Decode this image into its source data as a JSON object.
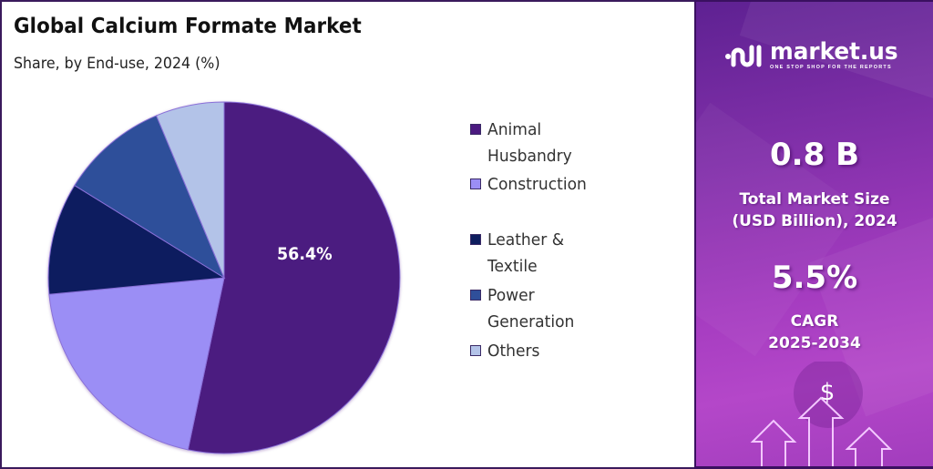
{
  "header": {
    "title": "Global Calcium Formate Market",
    "subtitle": "Share, by End-use, 2024 (%)"
  },
  "chart_data": {
    "type": "pie",
    "title": "Global Calcium Formate Market",
    "subtitle": "Share, by End-use, 2024 (%)",
    "categories": [
      "Animal Husbandry",
      "Construction",
      "Leather & Textile",
      "Power Generation",
      "Others"
    ],
    "values": [
      56.4,
      19.2,
      9.8,
      9.4,
      5.2
    ],
    "colors": [
      "#4b1a80",
      "#9b8ef5",
      "#0e1e5f",
      "#2f4f9a",
      "#b3c3e8"
    ],
    "data_labels": [
      {
        "category": "Animal Husbandry",
        "text": "56.4%"
      }
    ],
    "start_angle_deg": 0,
    "direction": "clockwise",
    "legend_position": "right"
  },
  "pie": {
    "center_label": "56.4%"
  },
  "legend": {
    "items": [
      {
        "label_line1": "Animal",
        "label_line2": "Husbandry",
        "color": "#4b1a80"
      },
      {
        "label_line1": "Construction",
        "label_line2": "",
        "color": "#9b8ef5"
      },
      {
        "label_line1": "Leather &",
        "label_line2": "Textile",
        "color": "#0e1e5f"
      },
      {
        "label_line1": "Power",
        "label_line2": "Generation",
        "color": "#2f4f9a"
      },
      {
        "label_line1": "Others",
        "label_line2": "",
        "color": "#b3c3e8"
      }
    ]
  },
  "brand": {
    "name": "market.us",
    "tagline": "ONE STOP SHOP FOR THE REPORTS"
  },
  "stats": {
    "market_size_value": "0.8 B",
    "market_size_label_line1": "Total Market Size",
    "market_size_label_line2": "(USD Billion), 2024",
    "cagr_value": "5.5%",
    "cagr_label_line1": "CAGR",
    "cagr_label_line2": "2025-2034"
  },
  "decoration": {
    "currency_symbol": "$"
  }
}
